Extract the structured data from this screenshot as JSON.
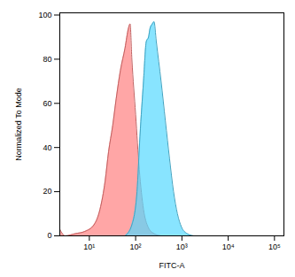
{
  "chart_data": {
    "type": "area",
    "x_label": "FITC-A",
    "y_label": "Normalized To Mode",
    "log": "x",
    "grid": false,
    "xlim": [
      2.3,
      160000
    ],
    "ylim": [
      0,
      101
    ],
    "xticks": [
      {
        "value": 10,
        "label": "10¹"
      },
      {
        "value": 100,
        "label": "10²"
      },
      {
        "value": 1000,
        "label": "10³"
      },
      {
        "value": 10000,
        "label": "10⁴"
      },
      {
        "value": 100000,
        "label": "10⁵"
      }
    ],
    "yticks": [
      0,
      20,
      40,
      60,
      80,
      100
    ],
    "series": [
      {
        "color": "#ff8080",
        "x": [
          2.3,
          3,
          5,
          8,
          12.6,
          17,
          22,
          26,
          32,
          38,
          47,
          59,
          70,
          76,
          83,
          100,
          120,
          148,
          186,
          250,
          355
        ],
        "values": [
          3,
          0,
          1,
          2,
          5,
          12,
          25,
          38,
          50,
          62,
          75,
          85,
          94,
          96,
          80,
          55,
          30,
          12,
          4,
          1,
          0
        ]
      },
      {
        "color": "#55d8ff",
        "x": [
          59,
          83,
          107,
          124,
          148,
          170,
          190,
          205,
          230,
          250,
          280,
          355,
          440,
          540,
          660,
          800,
          980,
          1300,
          1800
        ],
        "values": [
          0,
          5,
          20,
          45,
          70,
          88,
          90,
          94,
          96,
          97,
          88,
          70,
          52,
          35,
          20,
          10,
          4,
          1,
          0
        ]
      }
    ]
  }
}
